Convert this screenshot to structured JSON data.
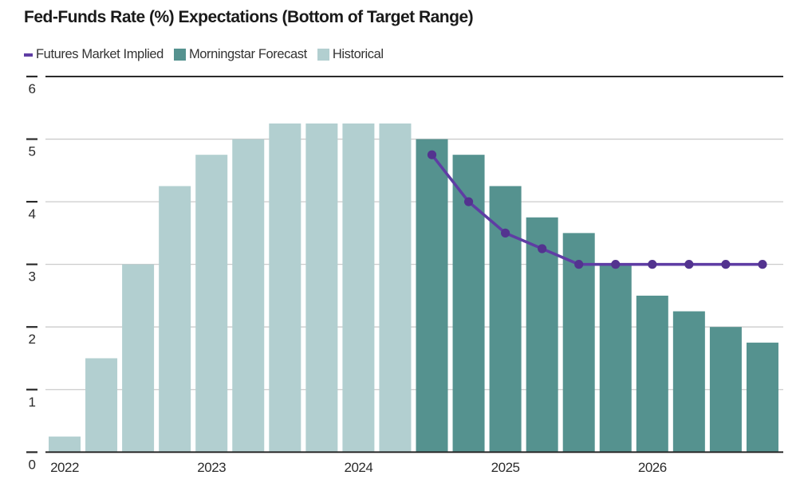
{
  "title": "Fed-Funds Rate (%) Expectations (Bottom of Target Range)",
  "legend": [
    {
      "label": "Futures Market Implied",
      "swatch": "line",
      "color": "#5f3da4"
    },
    {
      "label": "Morningstar Forecast",
      "swatch": "square",
      "color": "#55928f"
    },
    {
      "label": "Historical",
      "swatch": "square",
      "color": "#b2cfd0"
    }
  ],
  "colors": {
    "background": "#ffffff",
    "axis_line": "#2b2b2b",
    "gridline": "#cbcbcb",
    "tick_dash": "#2b2b2b",
    "tick_label": "#2b2b2b",
    "historical_bar": "#b2cfd0",
    "forecast_bar": "#55928f",
    "futures_line": "#5f3da4",
    "futures_marker": "#53338f"
  },
  "chart_data": {
    "type": "bar",
    "title": "Fed-Funds Rate (%) Expectations (Bottom of Target Range)",
    "xlabel": "",
    "ylabel": "",
    "ylim": [
      0,
      6
    ],
    "yticks": [
      0,
      1,
      2,
      3,
      4,
      5,
      6
    ],
    "grid": "horizontal",
    "legend_position": "top-left",
    "categories": [
      "2022 Q1",
      "2022 Q2",
      "2022 Q3",
      "2022 Q4",
      "2023 Q1",
      "2023 Q2",
      "2023 Q3",
      "2023 Q4",
      "2024 Q1",
      "2024 Q2",
      "2024 Q3",
      "2024 Q4",
      "2025 Q1",
      "2025 Q2",
      "2025 Q3",
      "2025 Q4",
      "2026 Q1",
      "2026 Q2",
      "2026 Q3",
      "2026 Q4"
    ],
    "x_axis_labels": [
      {
        "label": "2022",
        "index": 0
      },
      {
        "label": "2023",
        "index": 4
      },
      {
        "label": "2024",
        "index": 8
      },
      {
        "label": "2025",
        "index": 12
      },
      {
        "label": "2026",
        "index": 16
      }
    ],
    "series": [
      {
        "name": "Historical",
        "type": "bar",
        "color": "#b2cfd0",
        "values": [
          0.25,
          1.5,
          3.0,
          4.25,
          4.75,
          5.0,
          5.25,
          5.25,
          5.25,
          5.25,
          null,
          null,
          null,
          null,
          null,
          null,
          null,
          null,
          null,
          null
        ]
      },
      {
        "name": "Morningstar Forecast",
        "type": "bar",
        "color": "#55928f",
        "values": [
          null,
          null,
          null,
          null,
          null,
          null,
          null,
          null,
          null,
          null,
          5.0,
          4.75,
          4.25,
          3.75,
          3.5,
          3.0,
          2.5,
          2.25,
          2.0,
          1.75
        ]
      },
      {
        "name": "Futures Market Implied",
        "type": "line",
        "color": "#5f3da4",
        "marker": "circle",
        "marker_color": "#53338f",
        "values": [
          null,
          null,
          null,
          null,
          null,
          null,
          null,
          null,
          null,
          null,
          4.75,
          4.0,
          3.5,
          3.25,
          3.0,
          3.0,
          3.0,
          3.0,
          3.0,
          3.0
        ]
      }
    ]
  }
}
